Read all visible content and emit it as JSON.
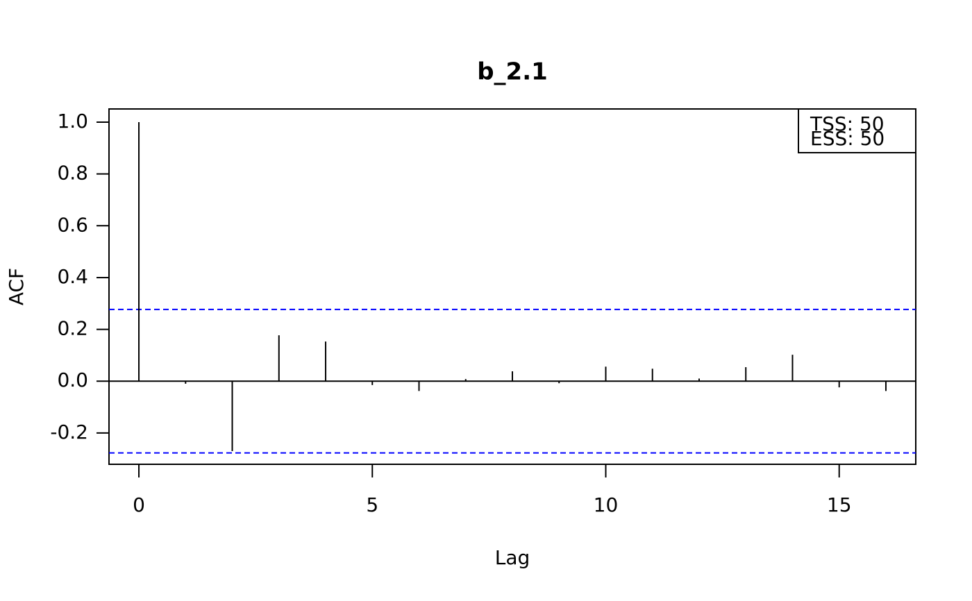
{
  "chart_data": {
    "type": "acf",
    "title": "b_2.1",
    "x_label": "Lag",
    "y_label": "ACF",
    "x": [
      0,
      1,
      2,
      3,
      4,
      5,
      6,
      7,
      8,
      9,
      10,
      11,
      12,
      13,
      14,
      15,
      16
    ],
    "values": [
      1.0,
      -0.01,
      -0.27,
      0.177,
      0.153,
      -0.015,
      -0.038,
      0.008,
      0.038,
      -0.008,
      0.056,
      0.048,
      0.01,
      0.054,
      0.102,
      -0.024,
      -0.038
    ],
    "color": "#000000",
    "conf_lines": [
      0.277,
      -0.277
    ],
    "conf_color": "#0000ff",
    "xlim": [
      -0.64,
      16.64
    ],
    "xticks": [
      0,
      5,
      10,
      15
    ],
    "ylim": [
      -0.321,
      1.051
    ],
    "yticks": [
      -0.2,
      {
        "value": 0,
        "label": "0.0"
      },
      0.2,
      0.4,
      0.6,
      0.8,
      {
        "value": 1,
        "label": "1.0"
      }
    ],
    "legend": [
      "TSS: 50",
      "ESS: 50"
    ],
    "legend_position": "top-right"
  }
}
